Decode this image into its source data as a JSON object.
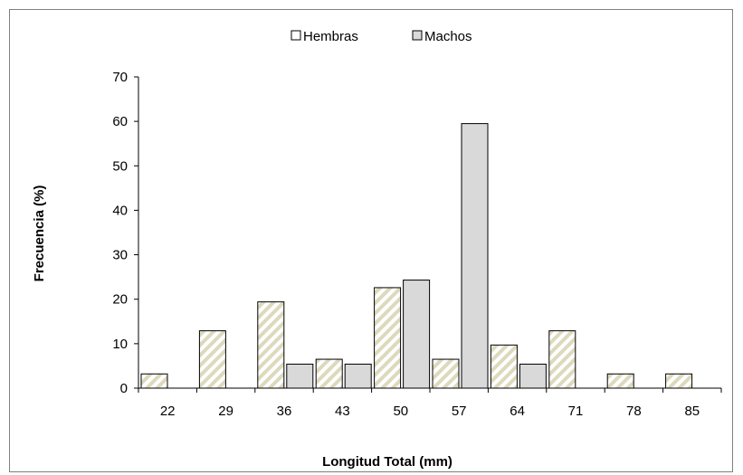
{
  "chart_data": {
    "type": "bar",
    "categories": [
      "22",
      "29",
      "36",
      "43",
      "50",
      "57",
      "64",
      "71",
      "78",
      "85"
    ],
    "series": [
      {
        "name": "Hembras",
        "values": [
          3.2,
          12.9,
          19.4,
          6.5,
          22.6,
          6.5,
          9.7,
          12.9,
          3.2,
          3.2
        ],
        "color": "#ebe8d2",
        "pattern": "diagonal-stripes"
      },
      {
        "name": "Machos",
        "values": [
          0,
          0,
          5.4,
          5.4,
          24.3,
          59.5,
          5.4,
          0,
          0,
          0
        ],
        "color": "#d9d9d9"
      }
    ],
    "title": "",
    "xlabel": "Longitud Total (mm)",
    "ylabel": "Frecuencia (%)",
    "ylim": [
      0,
      70
    ],
    "yticks": [
      "0",
      "10",
      "20",
      "30",
      "40",
      "50",
      "60",
      "70"
    ],
    "grid": false,
    "legend_position": "top-center"
  }
}
